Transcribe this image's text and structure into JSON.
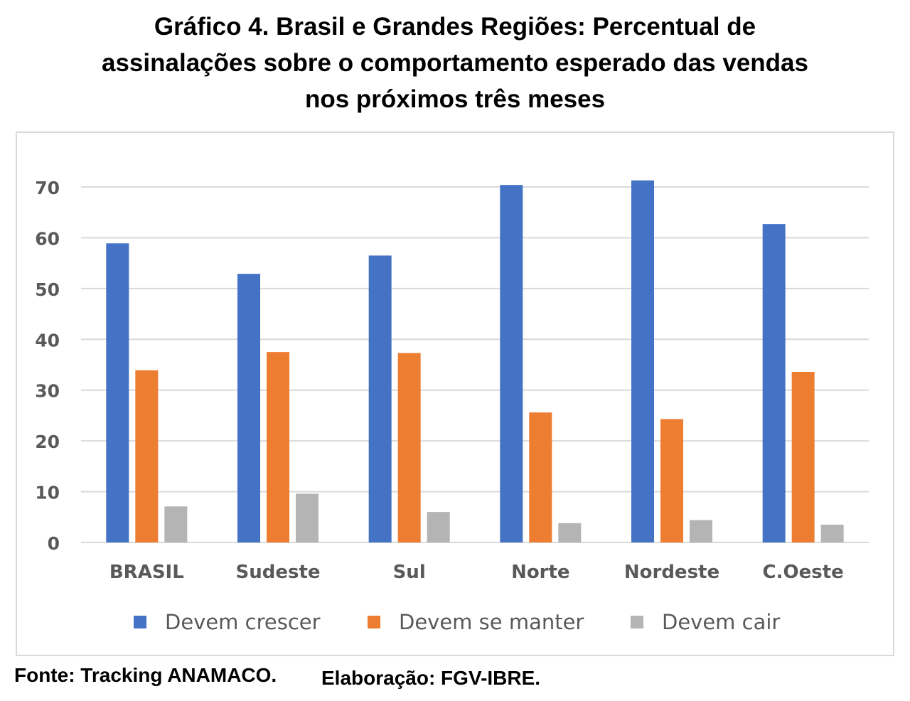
{
  "title_lines": [
    "Gráfico 4. Brasil e Grandes Regiões: Percentual de",
    "assinalações sobre o comportamento esperado das vendas",
    "nos próximos três meses"
  ],
  "source_left": "Fonte: Tracking ANAMACO.",
  "source_right": "Elaboração: FGV-IBRE.",
  "colors": {
    "crescer": "#4472c4",
    "manter": "#ed7d31",
    "cair": "#b4b4b4",
    "grid": "#d9d9d9",
    "tick": "#595959"
  },
  "chart_data": {
    "type": "bar",
    "title": "Gráfico 4. Brasil e Grandes Regiões: Percentual de assinalações sobre o comportamento esperado das vendas nos próximos três meses",
    "xlabel": "",
    "ylabel": "",
    "categories": [
      "BRASIL",
      "Sudeste",
      "Sul",
      "Norte",
      "Nordeste",
      "C.Oeste"
    ],
    "series": [
      {
        "name": "Devem crescer",
        "values": [
          58.9,
          52.9,
          56.5,
          70.4,
          71.3,
          62.7
        ]
      },
      {
        "name": "Devem se manter",
        "values": [
          33.9,
          37.5,
          37.3,
          25.6,
          24.3,
          33.6
        ]
      },
      {
        "name": "Devem cair",
        "values": [
          7.1,
          9.6,
          6.0,
          3.8,
          4.4,
          3.5
        ]
      }
    ],
    "ylim": [
      0,
      70
    ],
    "yticks": [
      0,
      10,
      20,
      30,
      40,
      50,
      60,
      70
    ],
    "grid": true,
    "legend": "bottom"
  }
}
